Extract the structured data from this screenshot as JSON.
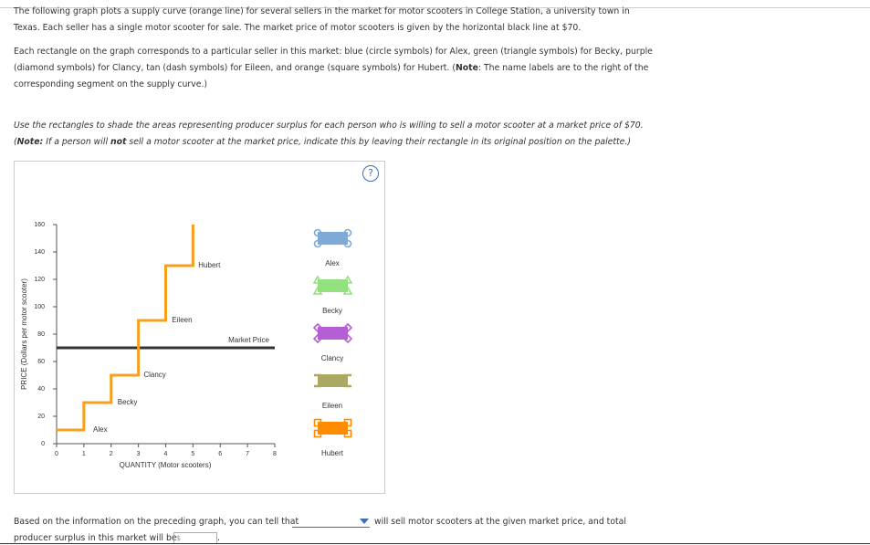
{
  "intro": [
    "The following graph plots a supply curve (orange line) for several sellers in the market for motor scooters in College Station, a university town in Texas. Each seller has a single motor scooter for sale. The market price of motor scooters is given by the horizontal black line at $70.",
    [
      "Each rectangle on the graph corresponds to a particular seller in this market: blue (circle symbols) for Alex, green (triangle symbols) for Becky, purple (diamond symbols) for Clancy, tan (dash symbols) for Eileen, and orange (square symbols) for Hubert. (",
      "Note",
      ": The name labels are to the right of the corresponding segment on the supply curve.)"
    ]
  ],
  "instructions": [
    "Use the rectangles to shade the areas representing producer surplus for each person who is willing to sell a motor scooter at a market price of $70.",
    [
      "(",
      "Note:",
      " If a person will ",
      "not",
      " sell a motor scooter at the market price, indicate this by leaving their rectangle in its original position on the palette.)"
    ]
  ],
  "help": "?",
  "chart_data": {
    "type": "step",
    "x_label": "QUANTITY (Motor scooters)",
    "y_label": "PRICE (Dollars per motor scooter)",
    "xlim": [
      0,
      8
    ],
    "ylim": [
      0,
      160
    ],
    "xticks": [
      0,
      1,
      2,
      3,
      4,
      5,
      6,
      7,
      8
    ],
    "yticks": [
      0,
      20,
      40,
      60,
      80,
      100,
      120,
      140,
      160
    ],
    "series": [
      {
        "color": "#f5a01e",
        "x": [
          0,
          1,
          2,
          3,
          4
        ],
        "values": [
          10,
          30,
          50,
          90,
          130
        ],
        "labels": [
          "Alex",
          "Becky",
          "Clancy",
          "Eileen",
          "Hubert"
        ]
      }
    ],
    "market_price": {
      "label": "Market Price",
      "value": 70,
      "color": "#333333"
    }
  },
  "palette": [
    {
      "name": "Alex",
      "color": "#7fa9d6",
      "symbol": "circle"
    },
    {
      "name": "Becky",
      "color": "#93e07e",
      "symbol": "triangle"
    },
    {
      "name": "Clancy",
      "color": "#b55fd6",
      "symbol": "diamond"
    },
    {
      "name": "Eileen",
      "color": "#a9a962",
      "symbol": "dash"
    },
    {
      "name": "Hubert",
      "color": "#ff8c00",
      "symbol": "square"
    }
  ],
  "question": {
    "before": "Based on the information on the preceding graph, you can tell that",
    "after": "will sell motor scooters at the given market price, and total",
    "line2": "producer surplus in this market will be",
    "currency": "$",
    "end": "."
  }
}
